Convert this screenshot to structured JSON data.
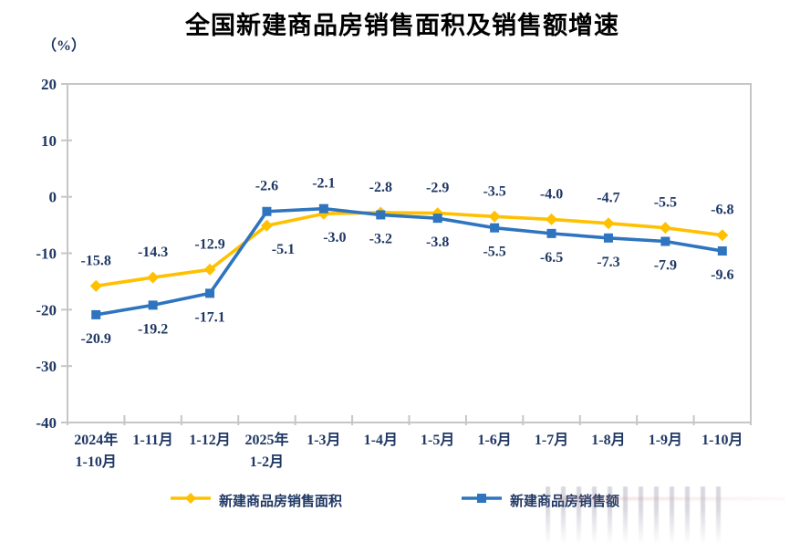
{
  "title": "全国新建商品房销售面积及销售额增速",
  "unit_label": "（%）",
  "colors": {
    "area_series": "#FFC000",
    "amount_series": "#2E74BE",
    "label_text": "#1F3864",
    "axis_border": "#C6C6C6",
    "title_text": "#000000",
    "background": "#FFFFFF"
  },
  "chart_data": {
    "type": "line",
    "title": "全国新建商品房销售面积及销售额增速",
    "ylabel": "（%）",
    "ylim": [
      -40,
      20
    ],
    "yticks": [
      20,
      10,
      0,
      -10,
      -20,
      -30,
      -40
    ],
    "grid": false,
    "legend_position": "bottom",
    "categories": [
      [
        "2024年",
        "1-10月"
      ],
      [
        "1-11月"
      ],
      [
        "1-12月"
      ],
      [
        "2025年",
        "1-2月"
      ],
      [
        "1-3月"
      ],
      [
        "1-4月"
      ],
      [
        "1-5月"
      ],
      [
        "1-6月"
      ],
      [
        "1-7月"
      ],
      [
        "1-8月"
      ],
      [
        "1-9月"
      ],
      [
        "1-10月"
      ]
    ],
    "series": [
      {
        "id": "sales-area",
        "name": "新建商品房销售面积",
        "color": "#FFC000",
        "marker": "diamond",
        "values": [
          -15.8,
          -14.3,
          -12.9,
          -5.1,
          -3.0,
          -2.8,
          -2.9,
          -3.5,
          -4.0,
          -4.7,
          -5.5,
          -6.8
        ],
        "label_pos": [
          "above",
          "above",
          "above",
          "below",
          "below",
          "above",
          "above",
          "above",
          "above",
          "above",
          "above",
          "above"
        ],
        "label_dx": [
          0,
          0,
          0,
          18,
          12,
          0,
          0,
          0,
          0,
          0,
          0,
          0
        ]
      },
      {
        "id": "sales-amount",
        "name": "新建商品房销售额",
        "color": "#2E74BE",
        "marker": "square",
        "values": [
          -20.9,
          -19.2,
          -17.1,
          -2.6,
          -2.1,
          -3.2,
          -3.8,
          -5.5,
          -6.5,
          -7.3,
          -7.9,
          -9.6
        ],
        "label_pos": [
          "below",
          "below",
          "below",
          "above",
          "above",
          "below",
          "below",
          "below",
          "below",
          "below",
          "below",
          "below"
        ],
        "label_dx": [
          0,
          0,
          0,
          0,
          0,
          0,
          0,
          0,
          0,
          0,
          0,
          0
        ]
      }
    ]
  },
  "legend": {
    "items": [
      {
        "label": "新建商品房销售面积"
      },
      {
        "label": "新建商品房销售额"
      }
    ]
  }
}
